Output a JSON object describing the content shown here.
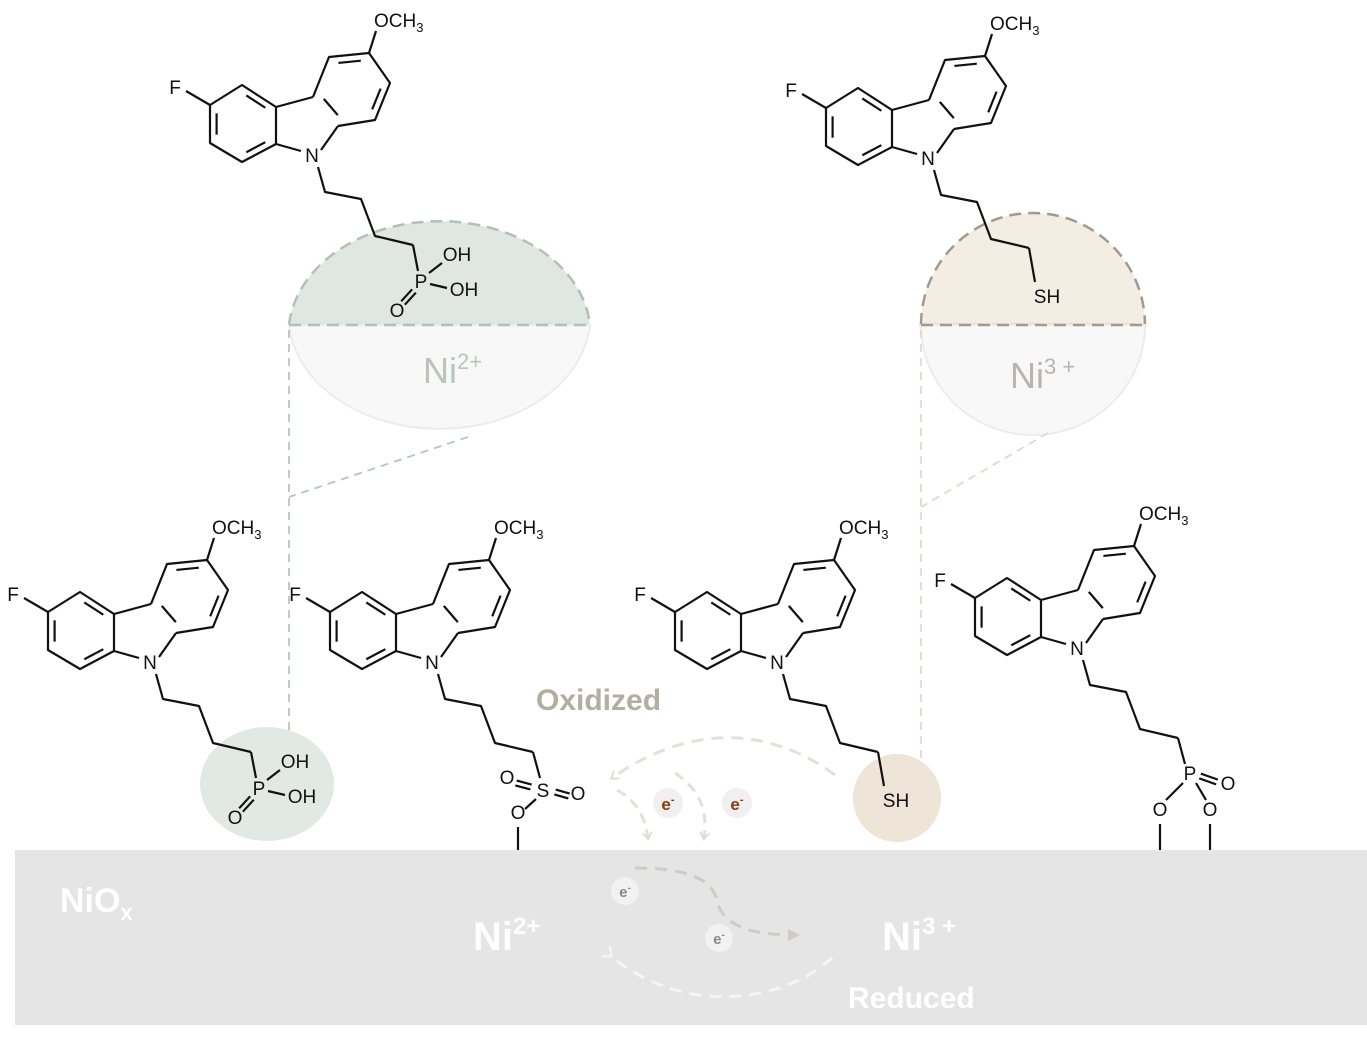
{
  "labels": {
    "N": "N",
    "F": "F",
    "OCH": "OCH",
    "OCH_sub": "3",
    "P": "P",
    "OH": "OH",
    "O": "O",
    "S": "S",
    "SH": "SH"
  },
  "zoom_left": {
    "label": "Ni",
    "charge": "2+"
  },
  "zoom_right": {
    "label": "Ni",
    "charge": "3 +"
  },
  "surface": {
    "material": "NiO",
    "material_sub": "x",
    "ni2": {
      "label": "Ni",
      "charge": "2+"
    },
    "ni3": {
      "label": "Ni",
      "charge": "3 +"
    },
    "reduced": "Reduced"
  },
  "oxidized": "Oxidized",
  "electron": {
    "label": "e",
    "charge": "-"
  },
  "colors": {
    "surface": "#e5e5e5",
    "ni2_accent": "#b3c0b8",
    "ni2_fill": "#e0e6e2",
    "ni3_accent": "#a39a8c",
    "ni3_fill": "#f3ede4",
    "oxidized_text": "#b3ada2",
    "electron_oxidized": "#8b3a10",
    "electron_surface": "#8a8a8a"
  }
}
